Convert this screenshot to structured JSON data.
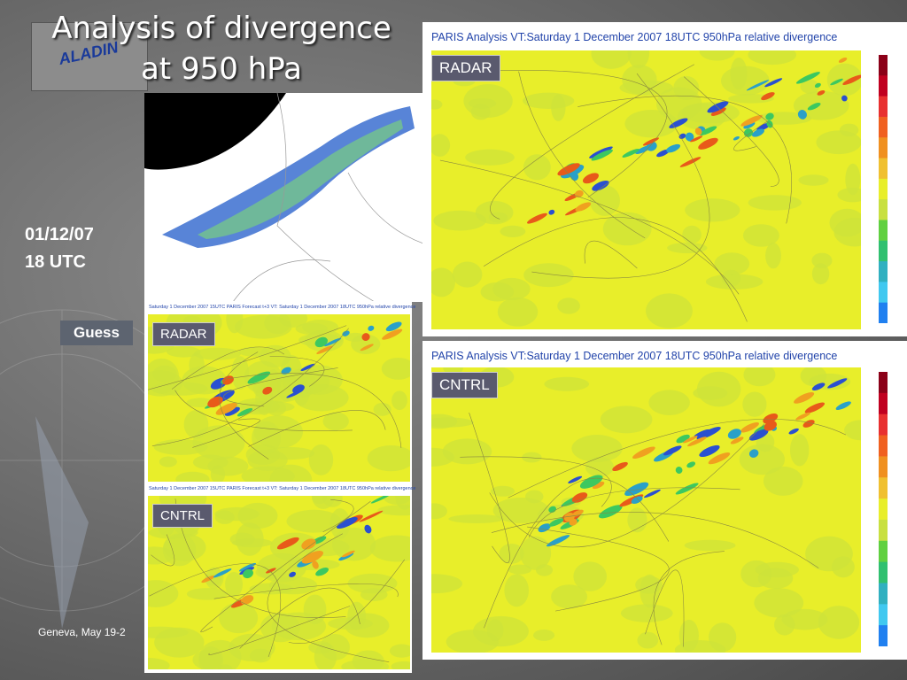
{
  "title": {
    "line1": "Analysis of divergence",
    "line2": "at 950 hPa"
  },
  "logo": "ALADIN",
  "date": {
    "day": "01/12/07",
    "time": "18 UTC"
  },
  "guess_label": "Guess",
  "small_panels": [
    {
      "title": "Saturday 1 December 2007 15UTC PARIS  Forecast t+3 VT: Saturday 1 December 2007 18UTC 950hPa relative divergence",
      "label": "RADAR"
    },
    {
      "title": "Saturday 1 December 2007 15UTC PARIS  Forecast t+3 VT: Saturday 1 December 2007 18UTC 950hPa relative divergence",
      "label": "CNTRL"
    }
  ],
  "big_panels": [
    {
      "title": "PARIS  Analysis VT:Saturday 1 December 2007 18UTC 950hPa relative divergence",
      "label": "RADAR"
    },
    {
      "title": "PARIS  Analysis VT:Saturday 1 December 2007 18UTC 950hPa relative divergence",
      "label": "CNTRL"
    }
  ],
  "footer": "Geneva, May 19-2"
}
